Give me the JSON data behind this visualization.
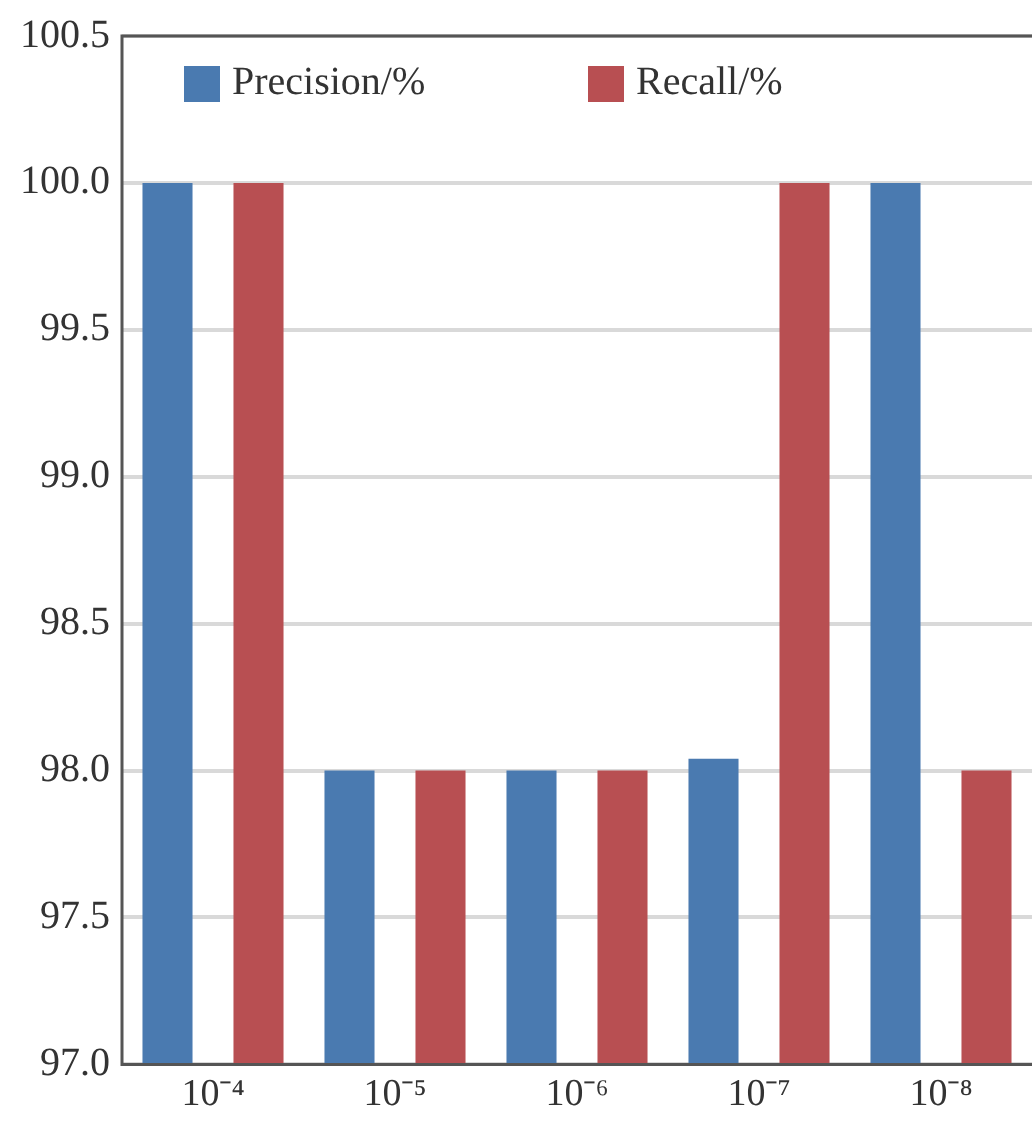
{
  "chart_data": {
    "type": "bar",
    "categories": [
      "10⁻⁴",
      "10⁻⁵",
      "10⁻⁶",
      "10⁻⁷",
      "10⁻⁸"
    ],
    "series": [
      {
        "name": "Precision/%",
        "color": "#4a7ab0",
        "values": [
          100.0,
          98.0,
          98.0,
          98.04,
          100.0
        ]
      },
      {
        "name": "Recall/%",
        "color": "#b84f52",
        "values": [
          100.0,
          98.0,
          98.0,
          100.0,
          98.0
        ]
      }
    ],
    "ylim": [
      97.0,
      100.5
    ],
    "yticks": [
      {
        "value": 97,
        "label": "97.0"
      },
      97.5,
      {
        "value": 98,
        "label": "98.0"
      },
      98.5,
      {
        "value": 99,
        "label": "99.0"
      },
      99.5,
      {
        "value": 100,
        "label": "100.0"
      },
      100.5
    ],
    "grid": "y",
    "legend": "top"
  }
}
